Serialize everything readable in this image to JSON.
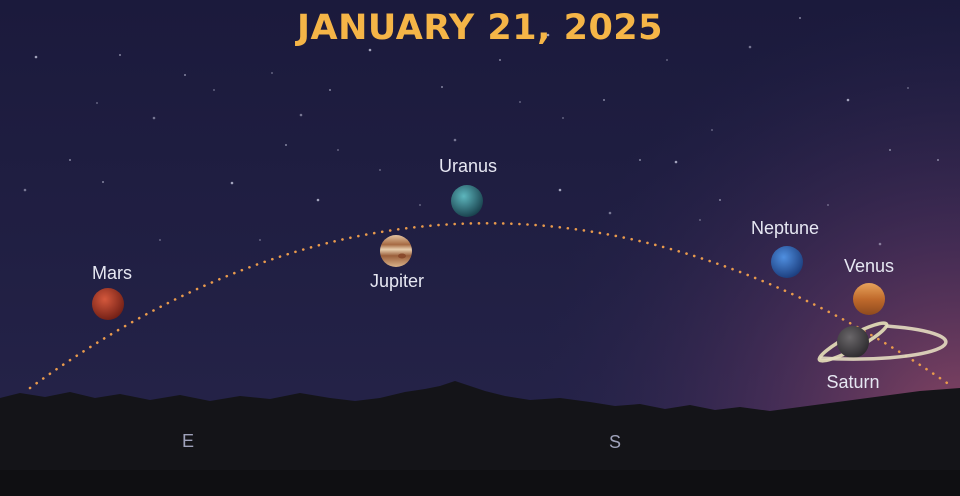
{
  "title": "JANUARY 21, 2025",
  "colors": {
    "title": "#f5b547",
    "label": "#e6e7f2",
    "arc_dots": "#e99a4c",
    "sky_top": "#1c1b3e",
    "sky_glow": "#8e4764",
    "ground": "#141418",
    "direction_label": "#9fa2ba"
  },
  "planets": [
    {
      "key": "mars",
      "name": "Mars",
      "color": "#b8402e",
      "icon": "mars-icon"
    },
    {
      "key": "jupiter",
      "name": "Jupiter",
      "color": "#c7956a",
      "icon": "jupiter-icon"
    },
    {
      "key": "uranus",
      "name": "Uranus",
      "color": "#3f8f96",
      "icon": "uranus-icon"
    },
    {
      "key": "neptune",
      "name": "Neptune",
      "color": "#3c6fbf",
      "icon": "neptune-icon"
    },
    {
      "key": "venus",
      "name": "Venus",
      "color": "#d48742",
      "icon": "venus-icon"
    },
    {
      "key": "saturn",
      "name": "Saturn",
      "color": "#555355",
      "icon": "saturn-icon"
    }
  ],
  "directions": {
    "east": "E",
    "south": "S"
  }
}
